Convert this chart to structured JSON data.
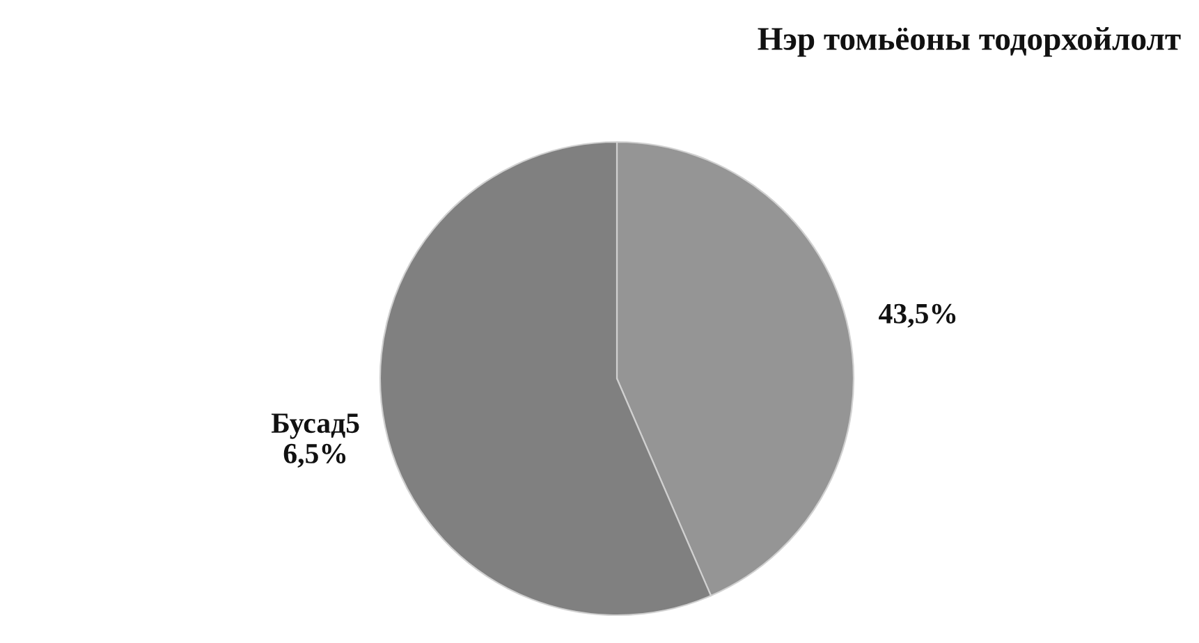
{
  "chart_data": {
    "type": "pie",
    "title": "Нэр томьёоны тодорхойлолт",
    "categories": [
      "43,5%",
      "Бусад5\n6,5%"
    ],
    "values": [
      43.5,
      56.5
    ],
    "colors": [
      "#959595",
      "#808080"
    ]
  }
}
